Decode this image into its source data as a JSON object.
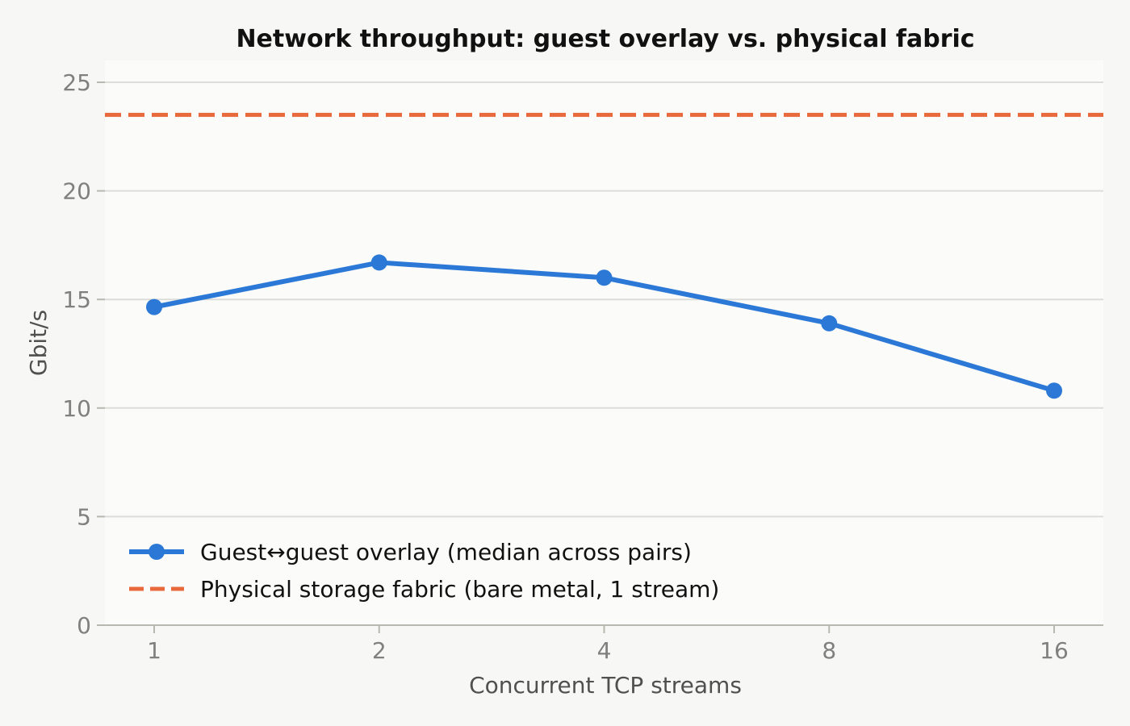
{
  "chart_data": {
    "type": "line",
    "title": "Network throughput: guest overlay vs. physical fabric",
    "xlabel": "Concurrent TCP streams",
    "ylabel": "Gbit/s",
    "categories": [
      "1",
      "2",
      "4",
      "8",
      "16"
    ],
    "x_scale": "categorical (log2 spacing)",
    "ylim": [
      0,
      26
    ],
    "yticks": [
      "0",
      "5",
      "10",
      "15",
      "20",
      "25"
    ],
    "grid": "horizontal",
    "legend_position": "lower-left",
    "series": [
      {
        "name": "Guest↔guest overlay (median across pairs)",
        "style": "solid line with markers",
        "color": "#2b78d6",
        "values": [
          14.65,
          16.7,
          16.0,
          13.9,
          10.8
        ]
      },
      {
        "name": "Physical storage fabric (bare metal, 1 stream)",
        "style": "dashed horizontal reference line",
        "color": "#e8693c",
        "value": 23.5
      }
    ]
  }
}
